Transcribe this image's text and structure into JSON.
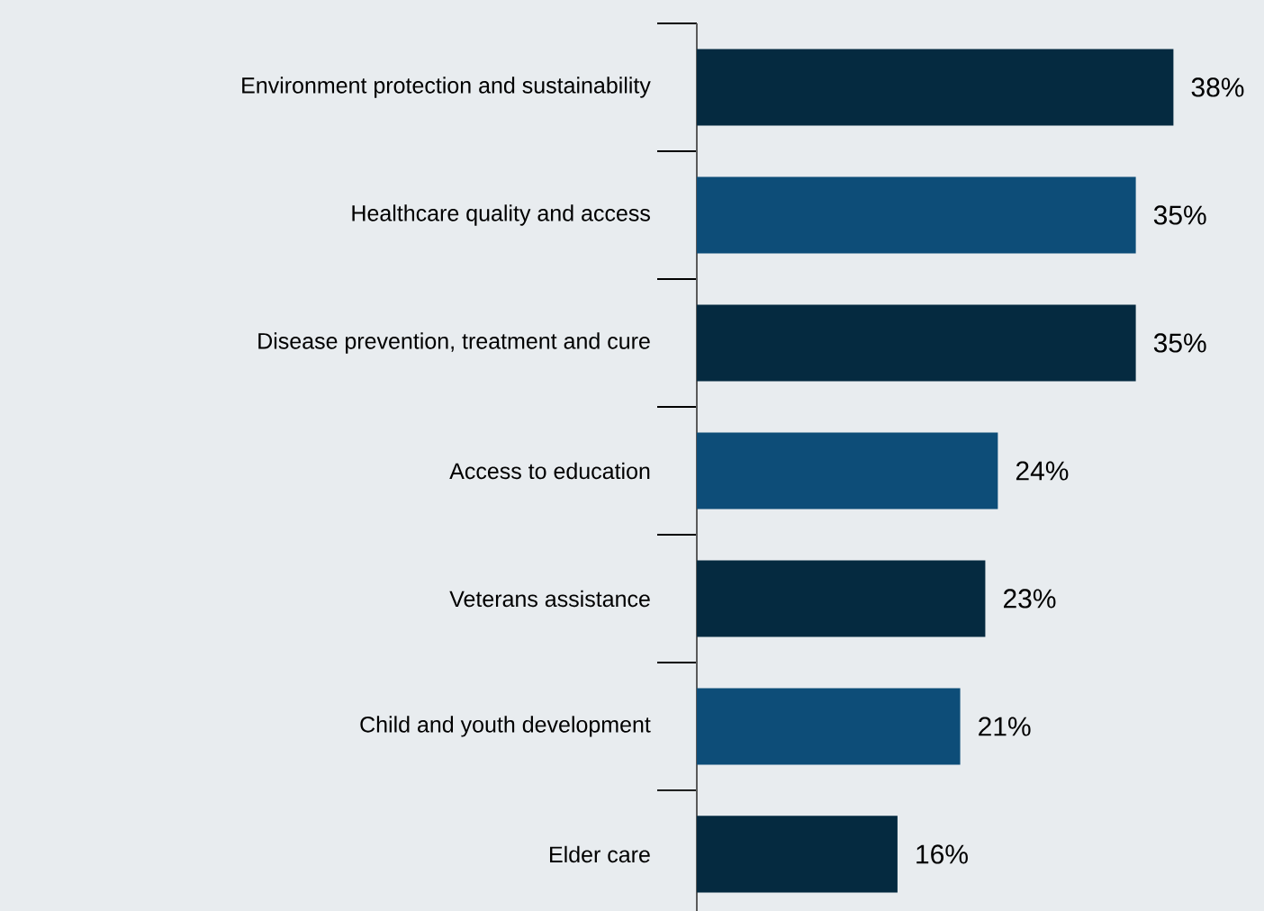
{
  "chart_data": {
    "type": "bar",
    "orientation": "horizontal",
    "categories": [
      "Environment protection and sustainability",
      "Healthcare quality and access",
      "Disease prevention, treatment and cure",
      "Access to education",
      "Veterans assistance",
      "Child and youth development",
      "Elder care"
    ],
    "values": [
      38,
      35,
      35,
      24,
      23,
      21,
      16
    ],
    "colors": [
      "#052a40",
      "#0d4d78",
      "#052a40",
      "#0d4d78",
      "#052a40",
      "#0d4d78",
      "#052a40"
    ],
    "value_labels": [
      "38%",
      "35%",
      "35%",
      "24%",
      "23%",
      "21%",
      "16%"
    ]
  }
}
